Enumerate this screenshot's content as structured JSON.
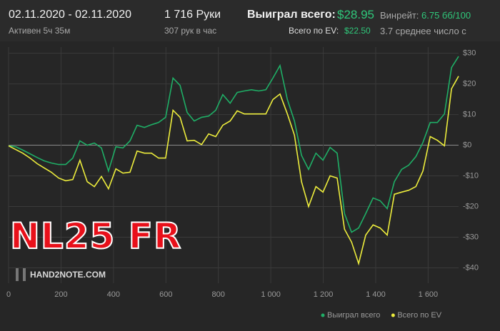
{
  "header": {
    "date_range": "02.11.2020 - 02.11.2020",
    "active": "Активен 5ч 35м",
    "hands": "1 716 Руки",
    "hands_per_hour": "307 рук в час",
    "won_label": "Выиграл всего:",
    "won_value": "$28.95",
    "ev_label": "Всего по EV:",
    "ev_value": "$22.50",
    "winrate_label": "Винрейт:",
    "winrate_value": "6.75 бб/100",
    "avg_label": "3.7 среднее число с"
  },
  "watermark": "NL25 FR",
  "logo": "HAND2NOTE.COM",
  "chart_data": {
    "type": "line",
    "x": [
      0,
      27,
      54,
      82,
      109,
      136,
      163,
      191,
      218,
      245,
      272,
      300,
      327,
      354,
      381,
      409,
      436,
      463,
      490,
      518,
      545,
      572,
      599,
      627,
      654,
      681,
      708,
      736,
      763,
      790,
      817,
      845,
      872,
      899,
      926,
      954,
      981,
      1008,
      1035,
      1063,
      1090,
      1117,
      1144,
      1172,
      1199,
      1226,
      1253,
      1281,
      1308,
      1335,
      1362,
      1390,
      1417,
      1444,
      1471,
      1499,
      1526,
      1553,
      1580,
      1608,
      1635,
      1662,
      1689,
      1716
    ],
    "series": [
      {
        "name": "Выиграл всего",
        "color": "#1fae66",
        "values": [
          -0.2,
          -0.5,
          -1.6,
          -2.8,
          -4.0,
          -5.1,
          -5.8,
          -6.3,
          -6.3,
          -4.2,
          1.4,
          0,
          0.7,
          -0.9,
          -8.4,
          -0.5,
          -0.9,
          1.4,
          6.5,
          5.8,
          6.7,
          7.4,
          9.1,
          21.9,
          19.5,
          10.7,
          7.9,
          9.1,
          9.5,
          11.4,
          16.5,
          13.7,
          17.2,
          17.7,
          18.1,
          17.7,
          18.1,
          21.9,
          26.0,
          14.9,
          7.9,
          -3.3,
          -7.9,
          -2.6,
          -4.9,
          -0.7,
          -2.6,
          -22.3,
          -28.4,
          -27.0,
          -22.3,
          -17.2,
          -18.1,
          -20.7,
          -11.9,
          -7.9,
          -6.5,
          -3.7,
          0.9,
          7.4,
          7.4,
          10.2,
          25.3,
          28.95
        ]
      },
      {
        "name": "Всего по EV",
        "color": "#ecec3c",
        "values": [
          -0.2,
          -1.4,
          -2.6,
          -4.2,
          -6.0,
          -7.4,
          -8.8,
          -10.7,
          -11.6,
          -11.2,
          -4.9,
          -11.9,
          -13.5,
          -10.2,
          -14.2,
          -7.7,
          -9.1,
          -8.8,
          -1.9,
          -2.6,
          -2.6,
          -4.2,
          -4.2,
          11.4,
          9.1,
          1.4,
          1.6,
          0.2,
          3.7,
          2.8,
          6.5,
          7.9,
          11.2,
          10.2,
          10.2,
          10.2,
          10.2,
          14.9,
          16.7,
          10.2,
          3.3,
          -11.9,
          -20.0,
          -13.5,
          -15.3,
          -10.0,
          -10.7,
          -27.4,
          -31.6,
          -38.6,
          -29.3,
          -26.0,
          -27.0,
          -29.3,
          -16.0,
          -15.3,
          -14.7,
          -13.5,
          -8.4,
          2.8,
          1.6,
          -0.2,
          18.4,
          22.5
        ]
      }
    ],
    "xlim": [
      0,
      1716
    ],
    "ylim": [
      -45,
      32
    ],
    "xticks": [
      0,
      200,
      400,
      600,
      800,
      {
        "value": 1000,
        "label": "1 000"
      },
      {
        "value": 1200,
        "label": "1 200"
      },
      {
        "value": 1400,
        "label": "1 400"
      },
      {
        "value": 1600,
        "label": "1 600"
      }
    ],
    "yticks": [
      {
        "value": 30,
        "label": "$30"
      },
      {
        "value": 20,
        "label": "$20"
      },
      {
        "value": 10,
        "label": "$10"
      },
      {
        "value": 0,
        "label": "$0"
      },
      {
        "value": -10,
        "label": "-$10"
      },
      {
        "value": -20,
        "label": "-$20"
      },
      {
        "value": -30,
        "label": "-$30"
      },
      {
        "value": -40,
        "label": "-$40"
      }
    ],
    "grid": true,
    "legend": "bottom-right"
  }
}
